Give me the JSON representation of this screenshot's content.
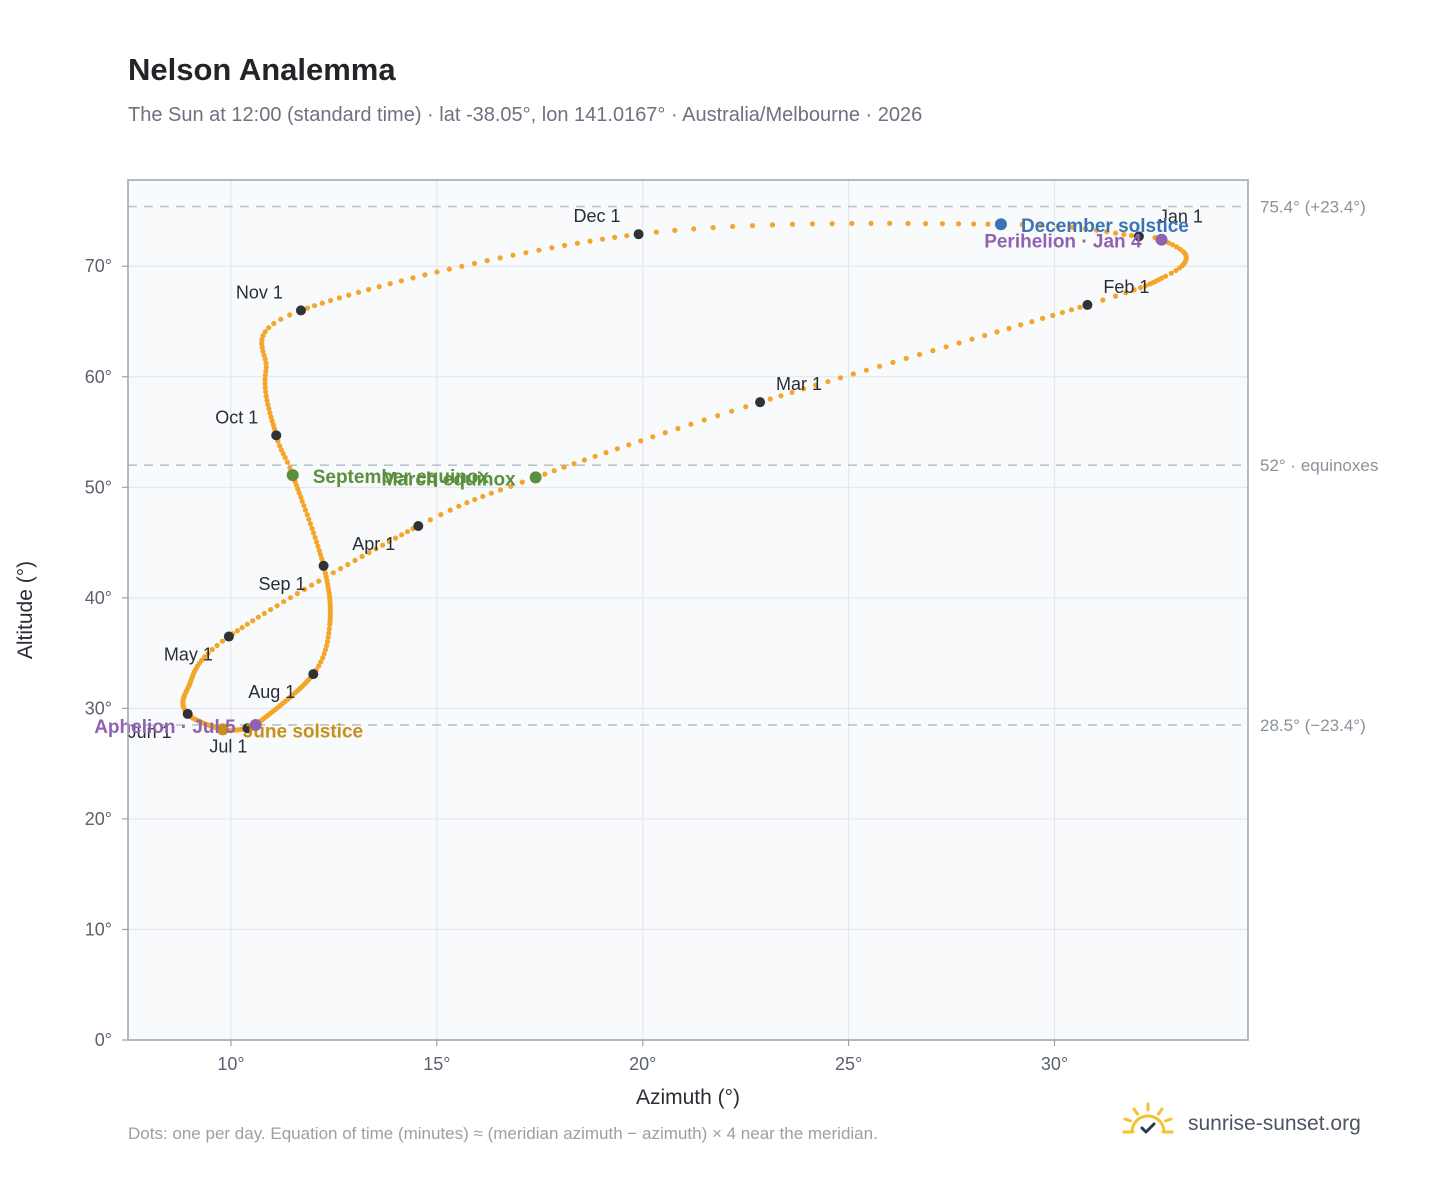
{
  "title": "Nelson Analemma",
  "subtitle": "The Sun at 12:00 (standard time) · lat -38.05°, lon 141.0167° · Australia/Melbourne · 2026",
  "footnote": "Dots: one per day. Equation of time (minutes) ≈ (meridian azimuth − azimuth) × 4 near the meridian.",
  "brand": {
    "name": "sunrise-sunset.org",
    "logo_icon": "sun-logo-icon"
  },
  "colors": {
    "path": "#f4a62a",
    "month_marker": "#2f3338",
    "equinox": "#5a8f3c",
    "december_solstice": "#3a74b5",
    "june_solstice": "#c8901a",
    "perihelion_aphelion": "#9062b0",
    "reference_line": "#b8c4d0",
    "plot_background": "#f8fafc",
    "grid": "#e4e8ee",
    "frame": "#9aa4b2"
  },
  "chart_data": {
    "type": "scatter",
    "xlabel": "Azimuth (°)",
    "ylabel": "Altitude (°)",
    "xlim": [
      7.5,
      34.7
    ],
    "ylim": [
      0,
      77.8
    ],
    "x_ticks": [
      10,
      15,
      20,
      25,
      30
    ],
    "x_tick_labels": [
      "10°",
      "15°",
      "20°",
      "25°",
      "30°"
    ],
    "y_ticks": [
      0,
      10,
      20,
      30,
      40,
      50,
      60,
      70
    ],
    "y_tick_labels": [
      "0°",
      "10°",
      "20°",
      "30°",
      "40°",
      "50°",
      "60°",
      "70°"
    ],
    "grid": true,
    "reference_lines": [
      {
        "y": 75.4,
        "label": "75.4° (+23.4°)"
      },
      {
        "y": 52,
        "label": "52° · equinoxes"
      },
      {
        "y": 28.5,
        "label": "28.5° (−23.4°)"
      }
    ],
    "month_markers": [
      {
        "label": "Jan 1",
        "x": 32.05,
        "y": 72.7
      },
      {
        "label": "Feb 1",
        "x": 30.8,
        "y": 66.5
      },
      {
        "label": "Mar 1",
        "x": 22.85,
        "y": 57.7
      },
      {
        "label": "Apr 1",
        "x": 14.55,
        "y": 46.5
      },
      {
        "label": "May 1",
        "x": 9.95,
        "y": 36.5
      },
      {
        "label": "Jun 1",
        "x": 8.95,
        "y": 29.5
      },
      {
        "label": "Jul 1",
        "x": 10.4,
        "y": 28.2
      },
      {
        "label": "Aug 1",
        "x": 12.0,
        "y": 33.1
      },
      {
        "label": "Sep 1",
        "x": 12.25,
        "y": 42.9
      },
      {
        "label": "Oct 1",
        "x": 11.1,
        "y": 54.7
      },
      {
        "label": "Nov 1",
        "x": 11.7,
        "y": 66.0
      },
      {
        "label": "Dec 1",
        "x": 19.9,
        "y": 72.9
      }
    ],
    "events": [
      {
        "label": "December solstice",
        "x": 28.7,
        "y": 73.8,
        "kind": "december_solstice"
      },
      {
        "label": "Perihelion · Jan 4",
        "x": 32.6,
        "y": 72.4,
        "kind": "perihelion_aphelion"
      },
      {
        "label": "March equinox",
        "x": 17.4,
        "y": 50.9,
        "kind": "equinox"
      },
      {
        "label": "September equinox",
        "x": 11.5,
        "y": 51.1,
        "kind": "equinox"
      },
      {
        "label": "June solstice",
        "x": 9.8,
        "y": 28.1,
        "kind": "june_solstice"
      },
      {
        "label": "Aphelion · Jul 5",
        "x": 10.6,
        "y": 28.5,
        "kind": "perihelion_aphelion"
      }
    ],
    "path_anchors": [
      {
        "day": 1,
        "x": 32.05,
        "y": 72.7
      },
      {
        "day": 4,
        "x": 32.6,
        "y": 72.4
      },
      {
        "day": 12,
        "x": 33.2,
        "y": 70.9
      },
      {
        "day": 20,
        "x": 32.7,
        "y": 69.1
      },
      {
        "day": 32,
        "x": 30.8,
        "y": 66.5
      },
      {
        "day": 60,
        "x": 22.85,
        "y": 57.7
      },
      {
        "day": 79,
        "x": 17.4,
        "y": 50.9
      },
      {
        "day": 91,
        "x": 14.55,
        "y": 46.5
      },
      {
        "day": 121,
        "x": 9.95,
        "y": 36.5
      },
      {
        "day": 138,
        "x": 8.95,
        "y": 31.8
      },
      {
        "day": 152,
        "x": 8.95,
        "y": 29.5
      },
      {
        "day": 172,
        "x": 9.8,
        "y": 28.1
      },
      {
        "day": 182,
        "x": 10.4,
        "y": 28.2
      },
      {
        "day": 186,
        "x": 10.6,
        "y": 28.5
      },
      {
        "day": 213,
        "x": 12.0,
        "y": 33.1
      },
      {
        "day": 225,
        "x": 12.4,
        "y": 37.6
      },
      {
        "day": 244,
        "x": 12.25,
        "y": 42.9
      },
      {
        "day": 266,
        "x": 11.5,
        "y": 51.1
      },
      {
        "day": 274,
        "x": 11.1,
        "y": 54.7
      },
      {
        "day": 290,
        "x": 10.85,
        "y": 60.5
      },
      {
        "day": 305,
        "x": 11.7,
        "y": 66.0
      },
      {
        "day": 335,
        "x": 19.9,
        "y": 72.9
      },
      {
        "day": 355,
        "x": 28.7,
        "y": 73.8
      },
      {
        "day": 366,
        "x": 32.05,
        "y": 72.7
      }
    ]
  }
}
